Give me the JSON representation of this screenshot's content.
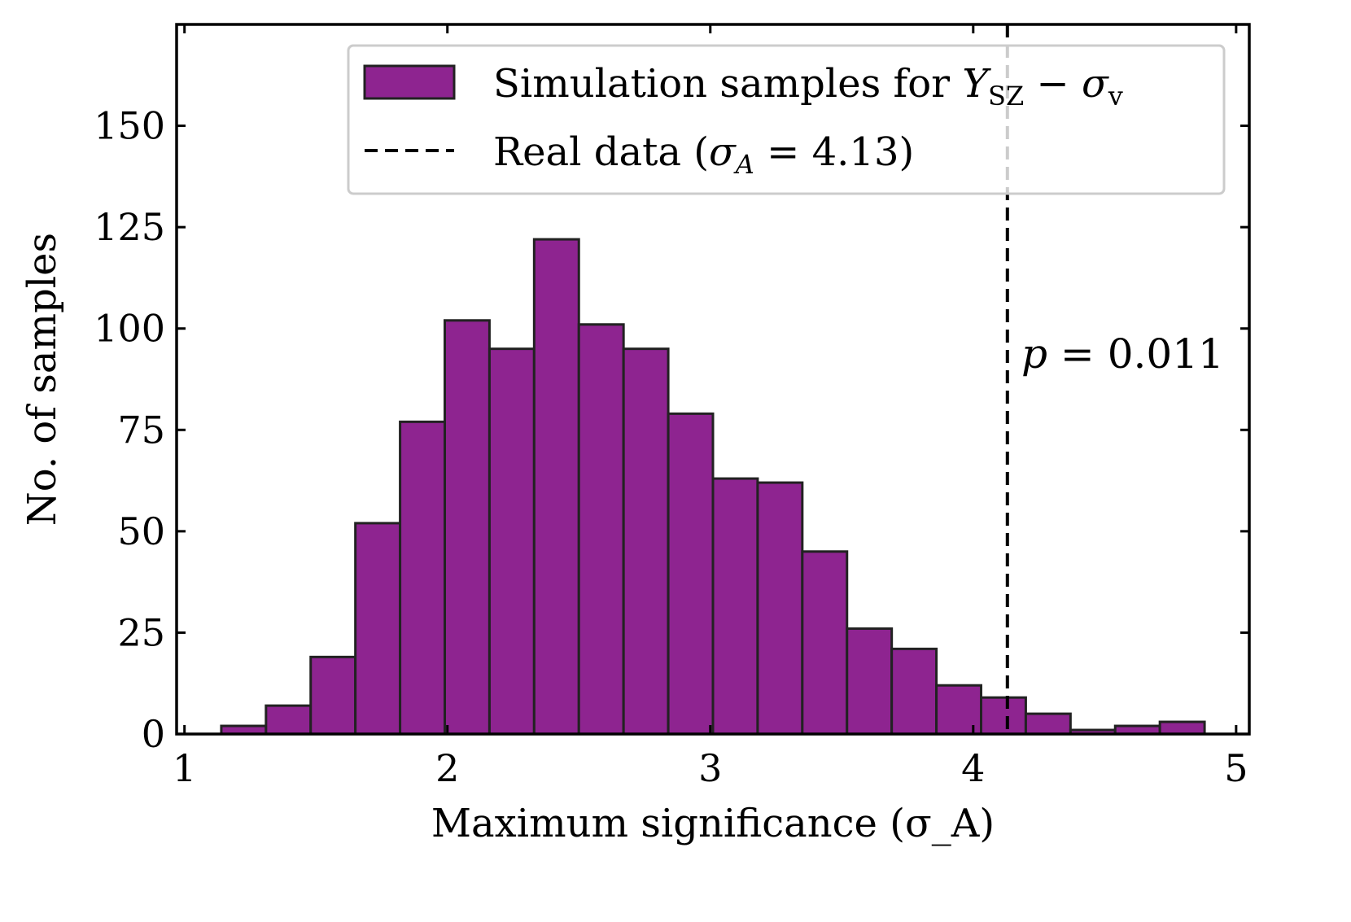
{
  "chart_data": {
    "type": "bar",
    "subtype": "histogram",
    "bin_edges": [
      1.14,
      1.31,
      1.48,
      1.65,
      1.82,
      1.99,
      2.16,
      2.33,
      2.5,
      2.67,
      2.84,
      3.01,
      3.18,
      3.35,
      3.52,
      3.69,
      3.86,
      4.03,
      4.2,
      4.37,
      4.54,
      4.71,
      4.88
    ],
    "values": [
      2,
      7,
      19,
      52,
      77,
      102,
      95,
      122,
      101,
      95,
      79,
      63,
      62,
      45,
      26,
      21,
      12,
      9,
      5,
      1,
      2,
      3
    ],
    "xlabel": "Maximum significance (σ_A)",
    "ylabel": "No. of samples",
    "xlim": [
      0.97,
      5.05
    ],
    "ylim": [
      0,
      175
    ],
    "xticks": [
      1,
      2,
      3,
      4,
      5
    ],
    "yticks": [
      0,
      25,
      50,
      75,
      100,
      125,
      150
    ],
    "bar_color": "#8e2490",
    "bar_edge_color": "#222222",
    "legend_placement": "top-right",
    "legend": {
      "hist_prefix": "Simulation samples for ",
      "hist_math_Y": "Y",
      "hist_math_Y_sub": "SZ",
      "hist_math_minus": " − ",
      "hist_math_sigma": "σ",
      "hist_math_sigma_sub": "v",
      "line_prefix": "Real data (",
      "line_math_sigma": "σ",
      "line_math_sub": "A",
      "line_suffix": " = 4.13)"
    },
    "real_data_value": 4.13,
    "annotation": {
      "p_symbol": "p",
      "p_rest": " = 0.011"
    }
  }
}
